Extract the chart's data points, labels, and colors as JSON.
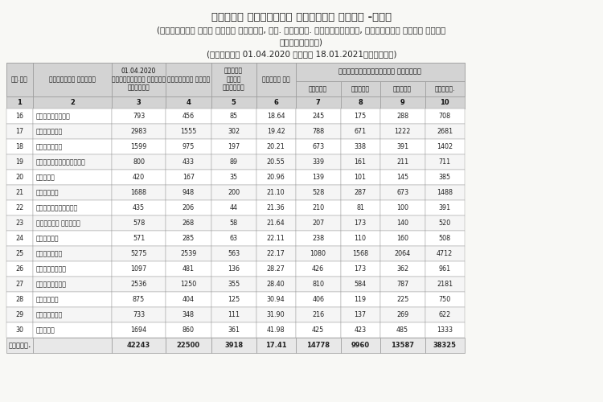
{
  "title1": "मनेगळ निर्माण प्रगति विवर -नगर",
  "title2": "(वाजपेयि नगर वसति योजने, डा. बिआरं. अंबेड्कर्, देवराजु अरसु वसति",
  "title3": "योजनेगळु)",
  "title4": "(दिनांक 01.04.2020 रिंद 18.01.2021रवरेगे)",
  "col_headers_row1": [
    "कृ.सं",
    "जिल्लेय हेसरु",
    "01.04.2020\nरल्लिदंते ओट्टु\nमनेगळु",
    "वार्षिक गुरि",
    "पूर्ण\nगोंद\nमनेगळु",
    "प्रति शत",
    "प्रगतियल्लिरुव मनेगळु",
    "",
    "",
    ""
  ],
  "col_headers_progress": [
    "तळपाय",
    "किटकि",
    "भावने",
    "ओट्टु."
  ],
  "col_numbers": [
    "1",
    "2",
    "3",
    "4",
    "5",
    "6",
    "7",
    "8",
    "9",
    "10"
  ],
  "rows": [
    [
      "16",
      "चामराजनगर",
      "793",
      "456",
      "85",
      "18.64",
      "245",
      "175",
      "288",
      "708"
    ],
    [
      "17",
      "बेळगावि",
      "2983",
      "1555",
      "302",
      "19.42",
      "788",
      "671",
      "1222",
      "2681"
    ],
    [
      "18",
      "यादगिरि",
      "1599",
      "975",
      "197",
      "20.21",
      "673",
      "338",
      "391",
      "1402"
    ],
    [
      "19",
      "चिक्कबळ्ळापुर",
      "800",
      "433",
      "89",
      "20.55",
      "339",
      "161",
      "211",
      "711"
    ],
    [
      "20",
      "उडुपि",
      "420",
      "167",
      "35",
      "20.96",
      "139",
      "101",
      "145",
      "385"
    ],
    [
      "21",
      "मैसूरु",
      "1688",
      "948",
      "200",
      "21.10",
      "528",
      "287",
      "673",
      "1488"
    ],
    [
      "22",
      "चिक्कमगळूरु",
      "435",
      "206",
      "44",
      "21.36",
      "210",
      "81",
      "100",
      "391"
    ],
    [
      "23",
      "दक्षिण कन्नड",
      "578",
      "268",
      "58",
      "21.64",
      "207",
      "173",
      "140",
      "520"
    ],
    [
      "24",
      "रामनगर",
      "571",
      "285",
      "63",
      "22.11",
      "238",
      "110",
      "160",
      "508"
    ],
    [
      "25",
      "विजयपुर",
      "5275",
      "2539",
      "563",
      "22.17",
      "1080",
      "1568",
      "2064",
      "4712"
    ],
    [
      "26",
      "शिवमोग्ग",
      "1097",
      "481",
      "136",
      "28.27",
      "426",
      "173",
      "362",
      "961"
    ],
    [
      "27",
      "बागलकोटि",
      "2536",
      "1250",
      "355",
      "28.40",
      "810",
      "584",
      "787",
      "2181"
    ],
    [
      "28",
      "धारवाड",
      "875",
      "404",
      "125",
      "30.94",
      "406",
      "119",
      "225",
      "750"
    ],
    [
      "29",
      "दावणगेर",
      "733",
      "348",
      "111",
      "31.90",
      "216",
      "137",
      "269",
      "622"
    ],
    [
      "30",
      "कोप्ळ",
      "1694",
      "860",
      "361",
      "41.98",
      "425",
      "423",
      "485",
      "1333"
    ]
  ],
  "total_row": [
    "ओट्टु.",
    "",
    "42243",
    "22500",
    "3918",
    "17.41",
    "14778",
    "9960",
    "13587",
    "38325"
  ],
  "header_bg": "#d3d3d3",
  "row_bg_odd": "#ffffff",
  "row_bg_even": "#f5f5f5",
  "total_bg": "#e8e8e8",
  "border_color": "#999999",
  "text_color": "#222222",
  "header_text_color": "#111111"
}
